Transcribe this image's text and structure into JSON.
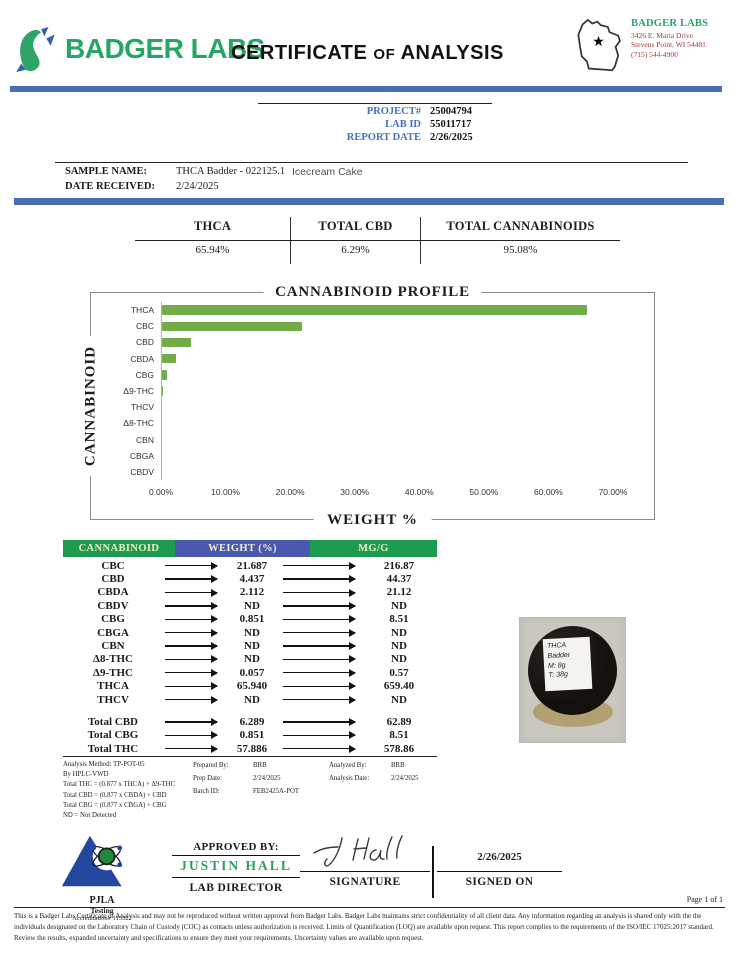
{
  "colors": {
    "accent_blue": "#4a6db8",
    "brand_green": "#27a565",
    "meta_label_blue": "#4472c4",
    "address_red": "#9e3b32",
    "table_header_green": "#1d9c4f",
    "table_header_blue": "#4a58b0",
    "bar_green": "#70ad47",
    "approver_green": "#2fa05c",
    "pjla_blue": "#23479e"
  },
  "header": {
    "brand": "BADGER LABS",
    "title_main": "CERTIFICATE",
    "title_of": "OF",
    "title_tail": "ANALYSIS",
    "lab_name": "BADGER LABS",
    "address_line1": "3426 E. Maria Drive",
    "address_line2": "Stevens Point, WI 54481",
    "phone": "(715) 544-4900"
  },
  "meta": {
    "project_label": "PROJECT#",
    "project_value": "25004794",
    "labid_label": "LAB ID",
    "labid_value": "55011717",
    "report_label": "REPORT DATE",
    "report_value": "2/26/2025"
  },
  "sample": {
    "name_label": "SAMPLE NAME:",
    "name_value": "THCA Badder - 022125.1",
    "strain": "Icecream Cake",
    "received_label": "DATE RECEIVED:",
    "received_value": "2/24/2025"
  },
  "summary": {
    "col1_label": "THCA",
    "col1_value": "65.94%",
    "col2_label": "TOTAL CBD",
    "col2_value": "6.29%",
    "col3_label": "TOTAL CANNABINOIDS",
    "col3_value": "95.08%"
  },
  "chart_data": {
    "type": "bar",
    "orientation": "horizontal",
    "title": "CANNABINOID PROFILE",
    "xlabel": "WEIGHT %",
    "ylabel": "CANNABINOID",
    "categories": [
      "THCA",
      "CBC",
      "CBD",
      "CBDA",
      "CBG",
      "Δ9-THC",
      "THCV",
      "Δ8-THC",
      "CBN",
      "CBGA",
      "CBDV"
    ],
    "values": [
      65.94,
      21.687,
      4.437,
      2.112,
      0.851,
      0.057,
      0,
      0,
      0,
      0,
      0
    ],
    "xlim": [
      0,
      70
    ],
    "x_ticks": [
      "0.00%",
      "10.00%",
      "20.00%",
      "30.00%",
      "40.00%",
      "50.00%",
      "60.00%",
      "70.00%"
    ],
    "bar_color": "#70ad47",
    "grid": false,
    "legend": false
  },
  "table": {
    "header_cannabinoid": "CANNABINOID",
    "header_weight": "WEIGHT (%)",
    "header_mgg": "MG/G",
    "rows": [
      [
        "CBC",
        "21.687",
        "216.87"
      ],
      [
        "CBD",
        "4.437",
        "44.37"
      ],
      [
        "CBDA",
        "2.112",
        "21.12"
      ],
      [
        "CBDV",
        "ND",
        "ND"
      ],
      [
        "CBG",
        "0.851",
        "8.51"
      ],
      [
        "CBGA",
        "ND",
        "ND"
      ],
      [
        "CBN",
        "ND",
        "ND"
      ],
      [
        "Δ8-THC",
        "ND",
        "ND"
      ],
      [
        "Δ9-THC",
        "0.057",
        "0.57"
      ],
      [
        "THCA",
        "65.940",
        "659.40"
      ],
      [
        "THCV",
        "ND",
        "ND"
      ]
    ],
    "totals": [
      [
        "Total CBD",
        "6.289",
        "62.89"
      ],
      [
        "Total CBG",
        "0.851",
        "8.51"
      ],
      [
        "Total THC",
        "57.886",
        "578.86"
      ]
    ]
  },
  "methods": {
    "left_lines": [
      "Analysis Method: TP-POT-05",
      "By HPLC-VWD",
      "Total THC = (0.877 x THCA) + Δ9-THC",
      "Total CBD = (0.877 x CBDA) + CBD",
      "Total CBG = (0.877 x CBGA) + CBG",
      "ND = Not Detected"
    ],
    "prep": [
      {
        "label": "Prepared By:",
        "value": "BRB"
      },
      {
        "label": "Prep Date:",
        "value": "2/24/2025"
      },
      {
        "label": "Batch ID:",
        "value": "FEB2425A-POT"
      }
    ],
    "analysis": [
      {
        "label": "Analyzed By:",
        "value": "BRB"
      },
      {
        "label": "Analysis Date:",
        "value": "2/24/2025"
      }
    ]
  },
  "photo": {
    "label_lines": [
      "THCA",
      "Badder",
      "M: 8g",
      "T: 38g"
    ]
  },
  "approval": {
    "approved_by_label": "APPROVED BY:",
    "approver": "JUSTIN HALL",
    "approver_title": "LAB DIRECTOR",
    "signature_label": "SIGNATURE",
    "signed_on_value": "2/26/2025",
    "signed_on_label": "SIGNED ON"
  },
  "accreditation": {
    "org": "PJLA",
    "sub": "Testing",
    "number": "Accreditation# 115522"
  },
  "footer": {
    "page": "Page 1 of 1",
    "disclaimer": "This is a Badger Labs Certificate of Analysis and may not be reproduced without written approval from Badger Labs. Badger Labs maintains strict confidentiality of all client data. Any information regarding an analysis is shared only with the the individuals designated on the Laboratory Chain of Custody (COC) as contacts unless authorization is received. Limits of Quantification (LOQ) are available upon request. This report complies to the requirements of the ISO/IEC 17025:2017 standard. Review the results, expanded uncertainty and specifications to ensure they meet your requirements. Uncertainty values are available upon request."
  }
}
